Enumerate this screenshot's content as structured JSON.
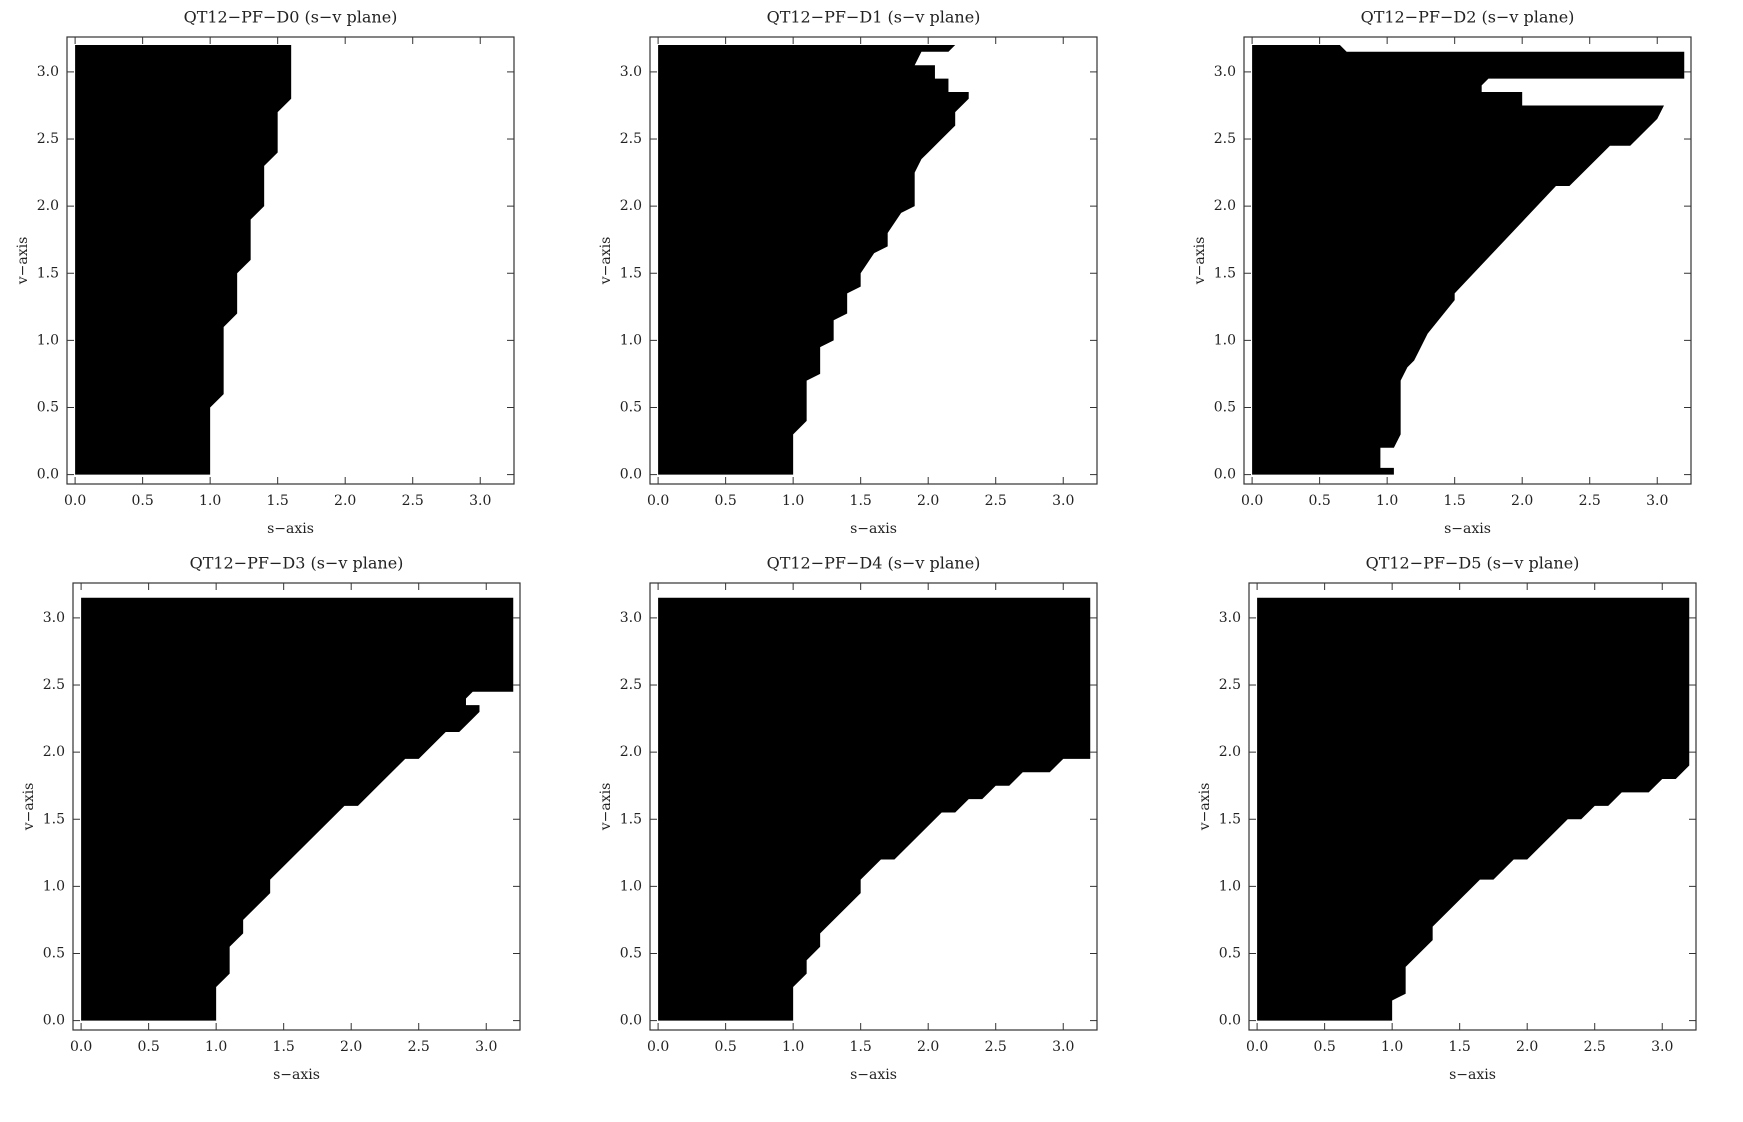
{
  "chart_data": [
    {
      "type": "area",
      "title": "QT12−PF−D0 (s−v plane)",
      "xlabel": "s−axis",
      "ylabel": "v−axis",
      "color": "#000000",
      "x": [
        0,
        0,
        1.6,
        1.6,
        1.5,
        1.5,
        1.4,
        1.4,
        1.3,
        1.3,
        1.2,
        1.2,
        1.1,
        1.1,
        1.0,
        1.0
      ],
      "y": [
        0,
        3.2,
        3.2,
        2.8,
        2.7,
        2.4,
        2.3,
        2.0,
        1.9,
        1.6,
        1.5,
        1.2,
        1.1,
        0.6,
        0.5,
        0
      ],
      "xlim": [
        -0.06,
        3.25
      ],
      "ylim": [
        -0.07,
        3.26
      ],
      "xticks": [
        {
          "value": 0,
          "label": "0.0"
        },
        0.5,
        {
          "value": 1,
          "label": "1.0"
        },
        1.5,
        {
          "value": 2,
          "label": "2.0"
        },
        2.5,
        {
          "value": 3,
          "label": "3.0"
        }
      ],
      "yticks": [
        {
          "value": 0,
          "label": "0.0"
        },
        0.5,
        {
          "value": 1,
          "label": "1.0"
        },
        1.5,
        {
          "value": 2,
          "label": "2.0"
        },
        2.5,
        {
          "value": 3,
          "label": "3.0"
        }
      ]
    },
    {
      "type": "area",
      "title": "QT12−PF−D1 (s−v plane)",
      "xlabel": "s−axis",
      "ylabel": "v−axis",
      "color": "#000000",
      "x": [
        0,
        0,
        2.2,
        2.15,
        1.95,
        1.9,
        2.05,
        2.05,
        2.15,
        2.15,
        2.3,
        2.3,
        2.2,
        2.2,
        2.1,
        2.0,
        1.95,
        1.9,
        1.9,
        1.8,
        1.7,
        1.7,
        1.6,
        1.5,
        1.5,
        1.4,
        1.4,
        1.3,
        1.3,
        1.2,
        1.2,
        1.1,
        1.1,
        1.0,
        1.0
      ],
      "y": [
        0,
        3.2,
        3.2,
        3.15,
        3.15,
        3.05,
        3.05,
        2.95,
        2.95,
        2.85,
        2.85,
        2.8,
        2.7,
        2.6,
        2.5,
        2.4,
        2.35,
        2.25,
        2.0,
        1.95,
        1.8,
        1.7,
        1.65,
        1.5,
        1.4,
        1.35,
        1.2,
        1.15,
        1.0,
        0.95,
        0.75,
        0.7,
        0.4,
        0.3,
        0
      ],
      "xlim": [
        -0.06,
        3.25
      ],
      "ylim": [
        -0.07,
        3.26
      ],
      "xticks": [
        {
          "value": 0,
          "label": "0.0"
        },
        0.5,
        {
          "value": 1,
          "label": "1.0"
        },
        1.5,
        {
          "value": 2,
          "label": "2.0"
        },
        2.5,
        {
          "value": 3,
          "label": "3.0"
        }
      ],
      "yticks": [
        {
          "value": 0,
          "label": "0.0"
        },
        0.5,
        {
          "value": 1,
          "label": "1.0"
        },
        1.5,
        {
          "value": 2,
          "label": "2.0"
        },
        2.5,
        {
          "value": 3,
          "label": "3.0"
        }
      ]
    },
    {
      "type": "area",
      "title": "QT12−PF−D2 (s−v plane)",
      "xlabel": "s−axis",
      "ylabel": "v−axis",
      "color": "#000000",
      "x": [
        0,
        0,
        0.65,
        0.7,
        3.2,
        3.2,
        1.75,
        1.7,
        1.7,
        2.0,
        2.0,
        3.05,
        3.0,
        2.8,
        2.65,
        2.35,
        2.25,
        1.5,
        1.5,
        1.3,
        1.25,
        1.2,
        1.15,
        1.1,
        1.1,
        1.05,
        0.95,
        0.95,
        1.05,
        1.05
      ],
      "y": [
        0,
        3.2,
        3.2,
        3.15,
        3.15,
        2.95,
        2.95,
        2.9,
        2.85,
        2.85,
        2.75,
        2.75,
        2.65,
        2.45,
        2.45,
        2.15,
        2.15,
        1.35,
        1.3,
        1.05,
        0.95,
        0.85,
        0.8,
        0.7,
        0.3,
        0.2,
        0.2,
        0.05,
        0.05,
        0
      ],
      "xlim": [
        -0.06,
        3.25
      ],
      "ylim": [
        -0.07,
        3.26
      ],
      "xticks": [
        {
          "value": 0,
          "label": "0.0"
        },
        0.5,
        {
          "value": 1,
          "label": "1.0"
        },
        1.5,
        {
          "value": 2,
          "label": "2.0"
        },
        2.5,
        {
          "value": 3,
          "label": "3.0"
        }
      ],
      "yticks": [
        {
          "value": 0,
          "label": "0.0"
        },
        0.5,
        {
          "value": 1,
          "label": "1.0"
        },
        1.5,
        {
          "value": 2,
          "label": "2.0"
        },
        2.5,
        {
          "value": 3,
          "label": "3.0"
        }
      ]
    },
    {
      "type": "area",
      "title": "QT12−PF−D3 (s−v plane)",
      "xlabel": "s−axis",
      "ylabel": "v−axis",
      "color": "#000000",
      "x": [
        0,
        0,
        3.2,
        3.2,
        2.9,
        2.85,
        2.85,
        2.95,
        2.95,
        2.9,
        2.8,
        2.7,
        2.5,
        2.4,
        2.05,
        1.95,
        1.4,
        1.4,
        1.2,
        1.2,
        1.1,
        1.1,
        1.0,
        1.0
      ],
      "y": [
        0,
        3.15,
        3.15,
        2.45,
        2.45,
        2.4,
        2.35,
        2.35,
        2.3,
        2.25,
        2.15,
        2.15,
        1.95,
        1.95,
        1.6,
        1.6,
        1.05,
        0.95,
        0.75,
        0.65,
        0.55,
        0.35,
        0.25,
        0
      ],
      "xlim": [
        -0.06,
        3.25
      ],
      "ylim": [
        -0.07,
        3.26
      ],
      "xticks": [
        {
          "value": 0,
          "label": "0.0"
        },
        0.5,
        {
          "value": 1,
          "label": "1.0"
        },
        1.5,
        {
          "value": 2,
          "label": "2.0"
        },
        2.5,
        {
          "value": 3,
          "label": "3.0"
        }
      ],
      "yticks": [
        {
          "value": 0,
          "label": "0.0"
        },
        0.5,
        {
          "value": 1,
          "label": "1.0"
        },
        1.5,
        {
          "value": 2,
          "label": "2.0"
        },
        2.5,
        {
          "value": 3,
          "label": "3.0"
        }
      ]
    },
    {
      "type": "area",
      "title": "QT12−PF−D4 (s−v plane)",
      "xlabel": "s−axis",
      "ylabel": "v−axis",
      "color": "#000000",
      "x": [
        0,
        0,
        3.2,
        3.2,
        3.0,
        2.9,
        2.7,
        2.6,
        2.5,
        2.4,
        2.3,
        2.2,
        2.1,
        1.75,
        1.65,
        1.5,
        1.5,
        1.2,
        1.2,
        1.1,
        1.1,
        1.0,
        1.0
      ],
      "y": [
        0,
        3.15,
        3.15,
        1.95,
        1.95,
        1.85,
        1.85,
        1.75,
        1.75,
        1.65,
        1.65,
        1.55,
        1.55,
        1.2,
        1.2,
        1.05,
        0.95,
        0.65,
        0.55,
        0.45,
        0.35,
        0.25,
        0
      ],
      "xlim": [
        -0.06,
        3.25
      ],
      "ylim": [
        -0.07,
        3.26
      ],
      "xticks": [
        {
          "value": 0,
          "label": "0.0"
        },
        0.5,
        {
          "value": 1,
          "label": "1.0"
        },
        1.5,
        {
          "value": 2,
          "label": "2.0"
        },
        2.5,
        {
          "value": 3,
          "label": "3.0"
        }
      ],
      "yticks": [
        {
          "value": 0,
          "label": "0.0"
        },
        0.5,
        {
          "value": 1,
          "label": "1.0"
        },
        1.5,
        {
          "value": 2,
          "label": "2.0"
        },
        2.5,
        {
          "value": 3,
          "label": "3.0"
        }
      ]
    },
    {
      "type": "area",
      "title": "QT12−PF−D5 (s−v plane)",
      "xlabel": "s−axis",
      "ylabel": "v−axis",
      "color": "#000000",
      "x": [
        0,
        0,
        3.2,
        3.2,
        3.1,
        3.0,
        2.9,
        2.7,
        2.6,
        2.5,
        2.4,
        2.3,
        2.0,
        1.9,
        1.75,
        1.65,
        1.3,
        1.3,
        1.1,
        1.1,
        1.0,
        1.0
      ],
      "y": [
        0,
        3.15,
        3.15,
        1.9,
        1.8,
        1.8,
        1.7,
        1.7,
        1.6,
        1.6,
        1.5,
        1.5,
        1.2,
        1.2,
        1.05,
        1.05,
        0.7,
        0.6,
        0.4,
        0.2,
        0.15,
        0
      ],
      "xlim": [
        -0.06,
        3.25
      ],
      "ylim": [
        -0.07,
        3.26
      ],
      "xticks": [
        {
          "value": 0,
          "label": "0.0"
        },
        0.5,
        {
          "value": 1,
          "label": "1.0"
        },
        1.5,
        {
          "value": 2,
          "label": "2.0"
        },
        2.5,
        {
          "value": 3,
          "label": "3.0"
        }
      ],
      "yticks": [
        {
          "value": 0,
          "label": "0.0"
        },
        0.5,
        {
          "value": 1,
          "label": "1.0"
        },
        1.5,
        {
          "value": 2,
          "label": "2.0"
        },
        2.5,
        {
          "value": 3,
          "label": "3.0"
        }
      ]
    }
  ]
}
